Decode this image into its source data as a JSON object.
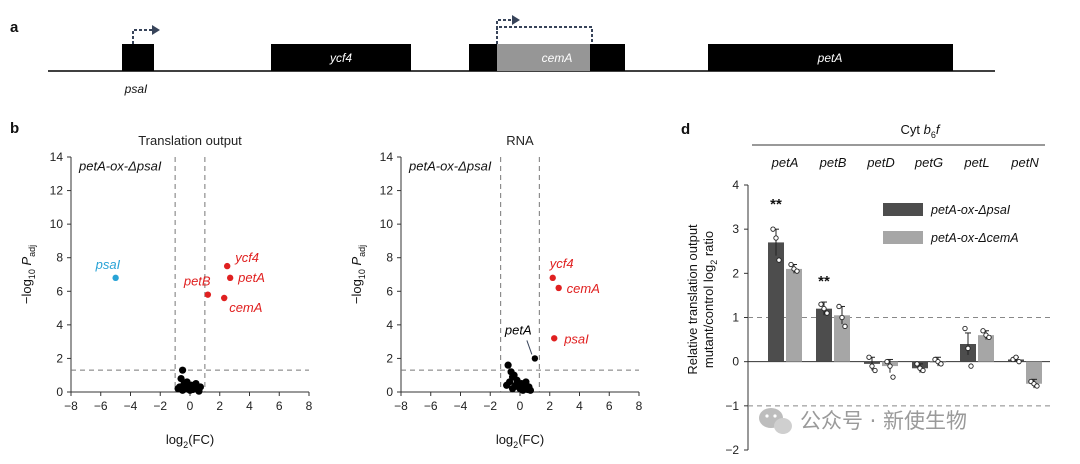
{
  "panels": {
    "a": "a",
    "b": "b",
    "d": "d"
  },
  "gene_map": {
    "genes": [
      {
        "name": "psaI",
        "color": "#000000"
      },
      {
        "name": "ycf4",
        "color": "#000000"
      },
      {
        "name": "",
        "color": "#000000"
      },
      {
        "name": "cemA",
        "color": "#969696"
      },
      {
        "name": "petA",
        "color": "#000000"
      }
    ]
  },
  "chart_data": [
    {
      "type": "scatter",
      "title": "Translation output",
      "annotation": "petA-ox-ΔpsaI",
      "xlabel": "log2(FC)",
      "ylabel": "-log10Padj",
      "xlim": [
        -8,
        8
      ],
      "ylim": [
        0,
        14
      ],
      "xticks": [
        "−8",
        "−6",
        "−4",
        "−2",
        "0",
        "2",
        "4",
        "6",
        "8"
      ],
      "yticks": [
        "0",
        "2",
        "4",
        "6",
        "8",
        "10",
        "12",
        "14"
      ],
      "thresholds": {
        "x": [
          -1,
          1
        ],
        "y": 1.3
      },
      "highlighted": [
        {
          "label": "psaI",
          "x": -5.0,
          "y": 6.8,
          "color": "#29a3d6"
        },
        {
          "label": "ycf4",
          "x": 2.5,
          "y": 7.5,
          "color": "#e02020"
        },
        {
          "label": "petA",
          "x": 2.7,
          "y": 6.8,
          "color": "#e02020"
        },
        {
          "label": "petB",
          "x": 1.2,
          "y": 5.8,
          "color": "#e02020"
        },
        {
          "label": "cemA",
          "x": 2.3,
          "y": 5.6,
          "color": "#e02020"
        }
      ],
      "background": {
        "color": "#000000",
        "points": [
          [
            -0.5,
            1.3
          ],
          [
            -0.6,
            0.8
          ],
          [
            -0.4,
            0.5
          ],
          [
            -0.7,
            0.3
          ],
          [
            -0.3,
            0.2
          ],
          [
            0.0,
            0.1
          ],
          [
            0.3,
            0.3
          ],
          [
            0.5,
            0.2
          ],
          [
            -0.2,
            0.6
          ],
          [
            0.1,
            0.4
          ],
          [
            -0.5,
            0.1
          ],
          [
            0.2,
            0.15
          ],
          [
            0.6,
            0.05
          ],
          [
            -0.8,
            0.2
          ],
          [
            0.4,
            0.5
          ],
          [
            -0.1,
            0.25
          ],
          [
            0.7,
            0.3
          ]
        ]
      }
    },
    {
      "type": "scatter",
      "title": "RNA",
      "annotation": "petA-ox-ΔpsaI",
      "xlabel": "log2(FC)",
      "ylabel": "-log10Padj",
      "xlim": [
        -8,
        8
      ],
      "ylim": [
        0,
        14
      ],
      "xticks": [
        "−8",
        "−6",
        "−4",
        "−2",
        "0",
        "2",
        "4",
        "6",
        "8"
      ],
      "yticks": [
        "0",
        "2",
        "4",
        "6",
        "8",
        "10",
        "12",
        "14"
      ],
      "thresholds": {
        "x": [
          -1.3,
          1.3
        ],
        "y": 1.3
      },
      "highlighted": [
        {
          "label": "ycf4",
          "x": 2.2,
          "y": 6.8,
          "color": "#e02020"
        },
        {
          "label": "cemA",
          "x": 2.6,
          "y": 6.2,
          "color": "#e02020"
        },
        {
          "label": "psaI",
          "x": 2.3,
          "y": 3.2,
          "color": "#e02020"
        },
        {
          "label": "petA",
          "x": 1.0,
          "y": 2.0,
          "color": "#000000"
        }
      ],
      "background": {
        "color": "#000000",
        "points": [
          [
            -0.8,
            1.6
          ],
          [
            -0.6,
            1.2
          ],
          [
            -0.5,
            0.9
          ],
          [
            -0.7,
            0.6
          ],
          [
            -0.3,
            0.4
          ],
          [
            0.0,
            0.2
          ],
          [
            0.3,
            0.35
          ],
          [
            0.5,
            0.15
          ],
          [
            -0.2,
            0.7
          ],
          [
            0.1,
            0.5
          ],
          [
            -0.5,
            0.2
          ],
          [
            0.2,
            0.1
          ],
          [
            0.6,
            0.3
          ],
          [
            -0.9,
            0.4
          ],
          [
            0.4,
            0.6
          ],
          [
            -0.1,
            0.3
          ],
          [
            0.7,
            0.1
          ],
          [
            -0.4,
            1.0
          ]
        ]
      }
    },
    {
      "type": "bar",
      "title": "Cyt b6f",
      "categories": [
        "petA",
        "petB",
        "petD",
        "petG",
        "petL",
        "petN"
      ],
      "ylabel_line1": "Relative translation output",
      "ylabel_line2": "mutant/control log2 ratio",
      "ylim": [
        -2,
        4
      ],
      "yticks": [
        "−2",
        "−1",
        "0",
        "1",
        "2",
        "3",
        "4"
      ],
      "reference_lines": [
        1,
        -1
      ],
      "series": [
        {
          "name": "petA-ox-ΔpsaI",
          "color": "#4d4d4d",
          "values": [
            2.7,
            1.2,
            -0.05,
            -0.15,
            0.4,
            0.05
          ],
          "errors": [
            0.3,
            0.15,
            0.15,
            0.1,
            0.25,
            0.05
          ],
          "replicates": [
            [
              3.0,
              2.8,
              2.3
            ],
            [
              1.3,
              1.2,
              1.1
            ],
            [
              0.1,
              -0.1,
              -0.2
            ],
            [
              -0.05,
              -0.15,
              -0.2
            ],
            [
              0.75,
              0.3,
              -0.1
            ],
            [
              0.05,
              0.1,
              0.0
            ]
          ]
        },
        {
          "name": "petA-ox-ΔcemA",
          "color": "#a6a6a6",
          "values": [
            2.1,
            1.05,
            -0.1,
            0.0,
            0.6,
            -0.5
          ],
          "errors": [
            0.1,
            0.2,
            0.15,
            0.1,
            0.1,
            0.1
          ],
          "replicates": [
            [
              2.2,
              2.1,
              2.05
            ],
            [
              1.25,
              1.0,
              0.8
            ],
            [
              0.0,
              -0.1,
              -0.35
            ],
            [
              0.05,
              0.0,
              -0.05
            ],
            [
              0.7,
              0.6,
              0.55
            ],
            [
              -0.45,
              -0.5,
              -0.55
            ]
          ]
        }
      ],
      "significance": [
        {
          "category": "petA",
          "label": "**",
          "y": 3.55
        },
        {
          "category": "petB",
          "label": "**",
          "y": 1.8
        }
      ]
    }
  ],
  "watermark": {
    "text": "公众号 · 新使生物",
    "icon": "wechat-icon"
  }
}
